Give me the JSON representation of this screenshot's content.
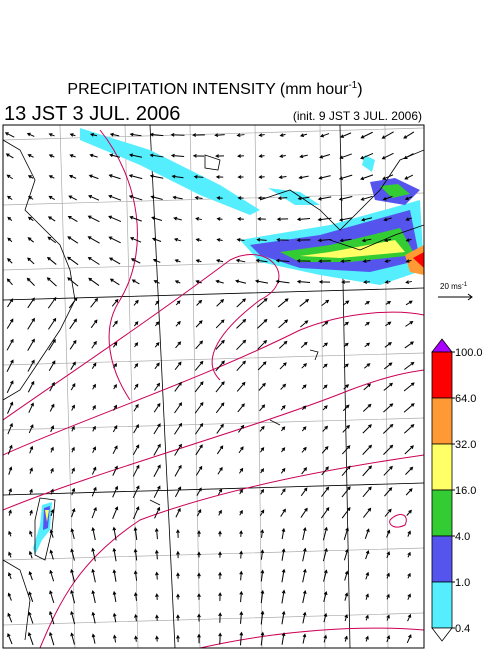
{
  "header": {
    "title": {
      "text": "PRECIPITATION INTENSITY (mm hour",
      "sup": "-1",
      "end": ")"
    },
    "valid_time": "13 JST 3 JUL. 2006",
    "init_time": "(init. 9 JST 3 JUL. 2006)"
  },
  "reference_vector": {
    "text": "20 ms",
    "sup": "-1"
  },
  "colorbar": {
    "levels": [
      {
        "value": 100,
        "label": "100.0"
      },
      {
        "value": 64,
        "label": "64.0"
      },
      {
        "value": 32,
        "label": "32.0"
      },
      {
        "value": 16,
        "label": "16.0"
      },
      {
        "value": 4,
        "label": "4.0"
      },
      {
        "value": 1,
        "label": "1.0"
      },
      {
        "value": 0.4,
        "label": "0.4"
      }
    ],
    "colors": [
      "#ff0000",
      "#ff9933",
      "#ffff66",
      "#33cc33",
      "#5555ee",
      "#55eeff"
    ],
    "over_color": "#aa00ff",
    "under_color": "#ffffff"
  }
}
